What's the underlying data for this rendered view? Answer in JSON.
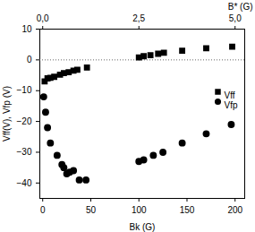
{
  "chart_data": {
    "type": "scatter",
    "x_label": "Bk (G)",
    "y_label": "Vff(V), Vfp (V)",
    "x2_label": "B* (G)",
    "xlim": [
      -3,
      210
    ],
    "xticks": [
      0,
      50,
      100,
      150,
      200
    ],
    "x2lim": [
      -0.075,
      5.25
    ],
    "x2ticks": [
      {
        "value": 0,
        "label": "0,0"
      },
      {
        "value": 2.5,
        "label": "2,5"
      },
      {
        "value": 5,
        "label": "5,0"
      }
    ],
    "ylim": [
      -45,
      10
    ],
    "yticks": [
      -40,
      -30,
      -20,
      -10,
      0,
      10
    ],
    "reference_line": 0,
    "legend": "top-right",
    "series": [
      {
        "name": "Vff",
        "color": "#000000",
        "marker": "square",
        "x": [
          2,
          5,
          8,
          12,
          18,
          22,
          27,
          32,
          36,
          46,
          100,
          105,
          112,
          120,
          126,
          145,
          170,
          197
        ],
        "values": [
          -7,
          -6,
          -5.8,
          -5.5,
          -4.8,
          -4.3,
          -4,
          -3.5,
          -3.2,
          -2.5,
          0.8,
          1.2,
          1.5,
          2,
          2.3,
          3,
          3.8,
          4.3
        ]
      },
      {
        "name": "Vfp",
        "color": "#000000",
        "marker": "circle",
        "x": [
          1,
          3,
          5,
          8,
          15,
          20,
          22,
          25,
          28,
          32,
          38,
          45,
          100,
          105,
          115,
          125,
          145,
          170,
          196
        ],
        "values": [
          -12,
          -17,
          -22,
          -27,
          -31,
          -34,
          -35,
          -37,
          -36.5,
          -36,
          -39,
          -39,
          -33,
          -32.5,
          -31,
          -30,
          -27,
          -24,
          -21
        ]
      }
    ]
  }
}
